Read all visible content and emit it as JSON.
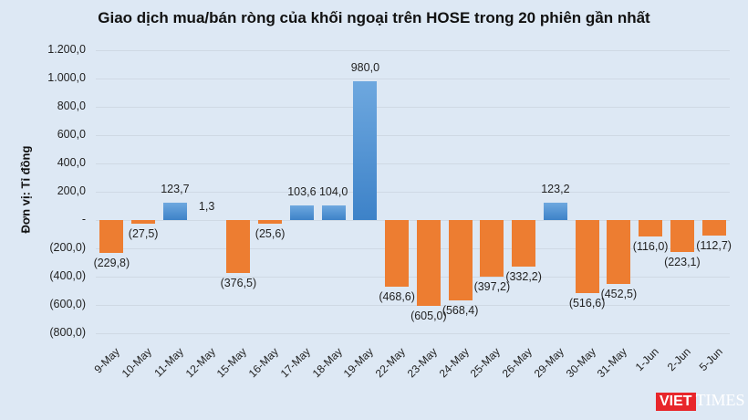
{
  "title": "Giao dịch mua/bán ròng của khối ngoại trên HOSE trong 20 phiên gần nhất",
  "y_axis_label": "Đơn vị: Tỉ đồng",
  "logo": {
    "part1": "VIET",
    "part2": "TIMES"
  },
  "colors": {
    "positive": "#4a8fd4",
    "negative": "#ed7d31",
    "background": "#dde8f4"
  },
  "chart_data": {
    "type": "bar",
    "title": "Giao dịch mua/bán ròng của khối ngoại trên HOSE trong 20 phiên gần nhất",
    "xlabel": "",
    "ylabel": "Đơn vị: Tỉ đồng",
    "ylim": [
      -800,
      1200
    ],
    "yticks": [
      "1.200,0",
      "1.000,0",
      "800,0",
      "600,0",
      "400,0",
      "200,0",
      "-",
      "(200,0)",
      "(400,0)",
      "(600,0)",
      "(800,0)"
    ],
    "categories": [
      "9-May",
      "10-May",
      "11-May",
      "12-May",
      "15-May",
      "16-May",
      "17-May",
      "18-May",
      "19-May",
      "22-May",
      "23-May",
      "24-May",
      "25-May",
      "26-May",
      "29-May",
      "30-May",
      "31-May",
      "1-Jun",
      "2-Jun",
      "5-Jun"
    ],
    "values": [
      -229.8,
      -27.5,
      123.7,
      1.3,
      -376.5,
      -25.6,
      103.6,
      104.0,
      980.0,
      -468.6,
      -605.0,
      -568.4,
      -397.2,
      -332.2,
      123.2,
      -516.6,
      -452.5,
      -116.0,
      -223.1,
      -112.7
    ],
    "labels": [
      "(229,8)",
      "(27,5)",
      "123,7",
      "1,3",
      "(376,5)",
      "(25,6)",
      "103,6",
      "104,0",
      "980,0",
      "(468,6)",
      "(605,0)",
      "(568,4)",
      "(397,2)",
      "(332,2)",
      "123,2",
      "(516,6)",
      "(452,5)",
      "(116,0)",
      "(223,1)",
      "(112,7)"
    ],
    "grid": true,
    "legend": "none"
  }
}
